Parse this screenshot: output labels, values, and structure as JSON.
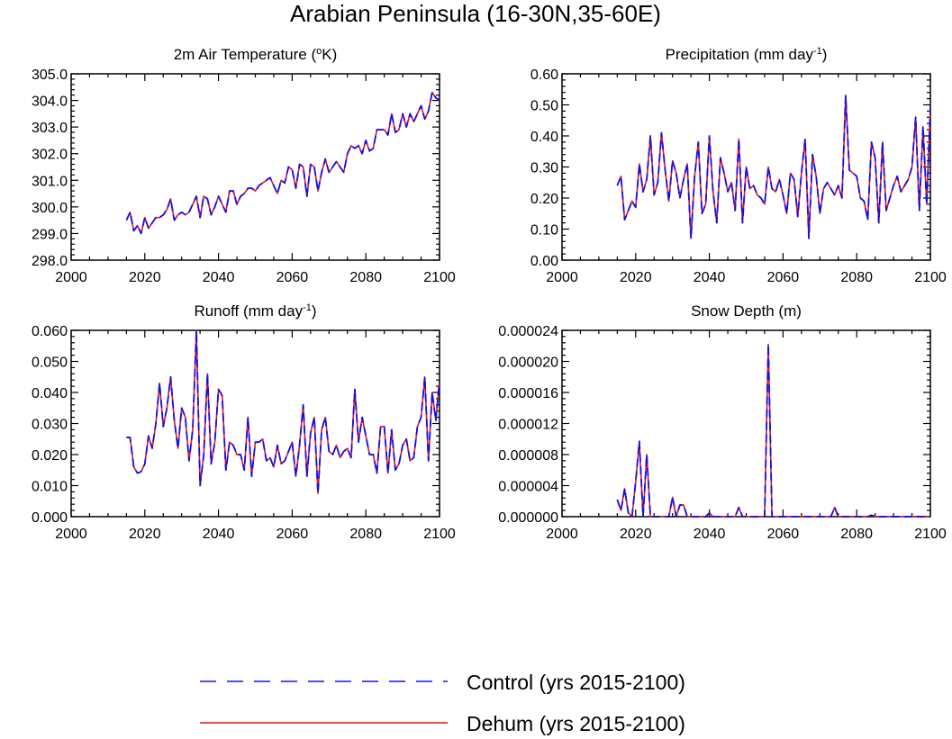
{
  "title": "Arabian Peninsula (16-30N,35-60E)",
  "legend": [
    {
      "label": "Control (yrs 2015-2100)",
      "color": "#1010ee",
      "style": "dashed"
    },
    {
      "label": "Dehum (yrs 2015-2100)",
      "color": "#ee1010",
      "style": "solid"
    }
  ],
  "chart_data": [
    {
      "type": "line",
      "title": "2m Air Temperature (",
      "title_sup": "o",
      "title_after": "K)",
      "xlim": [
        2000,
        2100
      ],
      "ylim": [
        298.0,
        305.0
      ],
      "xticks": [
        2000,
        2020,
        2040,
        2060,
        2080,
        2100
      ],
      "yticks": [
        298.0,
        299.0,
        300.0,
        301.0,
        302.0,
        303.0,
        304.0,
        305.0
      ],
      "ytick_labels": [
        "298.0",
        "299.0",
        "300.0",
        "301.0",
        "302.0",
        "303.0",
        "304.0",
        "305.0"
      ],
      "x_start": 2015,
      "series": [
        {
          "name": "Control",
          "values": [
            299.5,
            299.8,
            299.1,
            299.3,
            299.0,
            299.6,
            299.2,
            299.4,
            299.6,
            299.6,
            299.7,
            299.9,
            300.3,
            299.5,
            299.7,
            299.8,
            299.7,
            299.8,
            300.1,
            300.4,
            299.6,
            300.4,
            300.3,
            299.7,
            300.0,
            300.4,
            300.1,
            299.8,
            300.6,
            300.6,
            300.1,
            300.4,
            300.5,
            300.7,
            300.7,
            300.6,
            300.8,
            300.9,
            301.0,
            301.1,
            300.8,
            300.5,
            301.0,
            300.9,
            301.5,
            301.4,
            300.7,
            301.6,
            301.5,
            300.4,
            301.6,
            301.5,
            300.6,
            301.3,
            301.8,
            301.3,
            301.5,
            301.7,
            301.5,
            301.3,
            302.0,
            302.3,
            302.2,
            302.3,
            302.0,
            302.5,
            302.1,
            302.2,
            302.9,
            302.9,
            302.9,
            302.7,
            303.5,
            302.8,
            302.9,
            303.5,
            303.0,
            303.5,
            303.2,
            303.5,
            303.8,
            303.3,
            303.6,
            304.3,
            304.1,
            304.0
          ]
        },
        {
          "name": "Dehum",
          "values": [
            299.5,
            299.8,
            299.1,
            299.3,
            299.0,
            299.6,
            299.2,
            299.4,
            299.6,
            299.6,
            299.7,
            299.9,
            300.3,
            299.5,
            299.7,
            299.8,
            299.7,
            299.8,
            300.1,
            300.4,
            299.6,
            300.4,
            300.3,
            299.7,
            300.0,
            300.4,
            300.1,
            299.8,
            300.6,
            300.6,
            300.1,
            300.4,
            300.5,
            300.7,
            300.7,
            300.6,
            300.8,
            300.9,
            301.0,
            301.1,
            300.8,
            300.5,
            301.0,
            300.9,
            301.5,
            301.4,
            300.7,
            301.6,
            301.5,
            300.4,
            301.6,
            301.5,
            300.6,
            301.3,
            301.8,
            301.3,
            301.5,
            301.7,
            301.5,
            301.3,
            302.0,
            302.3,
            302.2,
            302.3,
            302.0,
            302.5,
            302.1,
            302.2,
            302.9,
            302.9,
            302.9,
            302.7,
            303.5,
            302.8,
            302.9,
            303.5,
            303.0,
            303.5,
            303.2,
            303.5,
            303.8,
            303.3,
            303.6,
            304.3,
            304.1,
            304.0
          ]
        }
      ]
    },
    {
      "type": "line",
      "title": "Precipitation (mm day",
      "title_sup": "-1",
      "title_after": ")",
      "xlim": [
        2000,
        2100
      ],
      "ylim": [
        0.0,
        0.6
      ],
      "xticks": [
        2000,
        2020,
        2040,
        2060,
        2080,
        2100
      ],
      "yticks": [
        0.0,
        0.1,
        0.2,
        0.3,
        0.4,
        0.5,
        0.6
      ],
      "ytick_labels": [
        "0.00",
        "0.10",
        "0.20",
        "0.30",
        "0.40",
        "0.50",
        "0.60"
      ],
      "x_start": 2015,
      "series": [
        {
          "name": "Control",
          "values": [
            0.24,
            0.27,
            0.13,
            0.16,
            0.19,
            0.17,
            0.31,
            0.22,
            0.26,
            0.4,
            0.21,
            0.25,
            0.41,
            0.29,
            0.19,
            0.32,
            0.28,
            0.2,
            0.26,
            0.31,
            0.07,
            0.27,
            0.38,
            0.15,
            0.18,
            0.4,
            0.22,
            0.12,
            0.33,
            0.28,
            0.22,
            0.25,
            0.16,
            0.39,
            0.12,
            0.3,
            0.23,
            0.24,
            0.21,
            0.2,
            0.18,
            0.3,
            0.23,
            0.22,
            0.26,
            0.21,
            0.15,
            0.28,
            0.26,
            0.14,
            0.28,
            0.39,
            0.07,
            0.34,
            0.27,
            0.15,
            0.23,
            0.25,
            0.23,
            0.21,
            0.24,
            0.2,
            0.53,
            0.29,
            0.28,
            0.27,
            0.2,
            0.19,
            0.13,
            0.38,
            0.33,
            0.12,
            0.38,
            0.16,
            0.2,
            0.24,
            0.27,
            0.22,
            0.24,
            0.26,
            0.3,
            0.46,
            0.16,
            0.43,
            0.18,
            0.49
          ]
        },
        {
          "name": "Dehum",
          "values": [
            0.24,
            0.27,
            0.13,
            0.16,
            0.19,
            0.17,
            0.31,
            0.22,
            0.26,
            0.4,
            0.21,
            0.25,
            0.41,
            0.29,
            0.19,
            0.32,
            0.28,
            0.2,
            0.26,
            0.31,
            0.07,
            0.27,
            0.38,
            0.15,
            0.18,
            0.4,
            0.22,
            0.12,
            0.33,
            0.28,
            0.22,
            0.25,
            0.16,
            0.39,
            0.12,
            0.3,
            0.23,
            0.24,
            0.21,
            0.2,
            0.18,
            0.3,
            0.23,
            0.22,
            0.26,
            0.21,
            0.15,
            0.28,
            0.26,
            0.14,
            0.28,
            0.39,
            0.07,
            0.34,
            0.27,
            0.15,
            0.23,
            0.25,
            0.23,
            0.21,
            0.24,
            0.2,
            0.53,
            0.29,
            0.28,
            0.27,
            0.2,
            0.19,
            0.13,
            0.38,
            0.33,
            0.12,
            0.38,
            0.16,
            0.2,
            0.24,
            0.27,
            0.22,
            0.24,
            0.26,
            0.3,
            0.46,
            0.16,
            0.43,
            0.18,
            0.49
          ]
        }
      ]
    },
    {
      "type": "line",
      "title": "Runoff (mm day",
      "title_sup": "-1",
      "title_after": ")",
      "xlim": [
        2000,
        2100
      ],
      "ylim": [
        0.0,
        0.06
      ],
      "xticks": [
        2000,
        2020,
        2040,
        2060,
        2080,
        2100
      ],
      "yticks": [
        0.0,
        0.01,
        0.02,
        0.03,
        0.04,
        0.05,
        0.06
      ],
      "ytick_labels": [
        "0.000",
        "0.010",
        "0.020",
        "0.030",
        "0.040",
        "0.050",
        "0.060"
      ],
      "x_start": 2015,
      "series": [
        {
          "name": "Control",
          "values": [
            0.0255,
            0.0255,
            0.016,
            0.014,
            0.0145,
            0.017,
            0.026,
            0.022,
            0.03,
            0.043,
            0.029,
            0.035,
            0.045,
            0.031,
            0.022,
            0.035,
            0.032,
            0.018,
            0.028,
            0.06,
            0.01,
            0.02,
            0.046,
            0.017,
            0.024,
            0.041,
            0.039,
            0.015,
            0.024,
            0.023,
            0.02,
            0.02,
            0.015,
            0.032,
            0.013,
            0.024,
            0.024,
            0.025,
            0.018,
            0.019,
            0.016,
            0.023,
            0.017,
            0.018,
            0.021,
            0.024,
            0.013,
            0.023,
            0.036,
            0.013,
            0.027,
            0.032,
            0.0075,
            0.028,
            0.032,
            0.021,
            0.02,
            0.023,
            0.019,
            0.021,
            0.022,
            0.019,
            0.041,
            0.024,
            0.032,
            0.026,
            0.02,
            0.02,
            0.014,
            0.029,
            0.029,
            0.014,
            0.028,
            0.015,
            0.017,
            0.023,
            0.025,
            0.018,
            0.019,
            0.029,
            0.032,
            0.045,
            0.018,
            0.04,
            0.031,
            0.044
          ]
        },
        {
          "name": "Dehum",
          "values": [
            0.0255,
            0.0255,
            0.016,
            0.014,
            0.0145,
            0.017,
            0.026,
            0.022,
            0.03,
            0.043,
            0.029,
            0.035,
            0.045,
            0.031,
            0.022,
            0.035,
            0.032,
            0.018,
            0.028,
            0.06,
            0.01,
            0.02,
            0.046,
            0.017,
            0.024,
            0.041,
            0.039,
            0.015,
            0.024,
            0.023,
            0.02,
            0.02,
            0.015,
            0.032,
            0.013,
            0.024,
            0.024,
            0.025,
            0.018,
            0.019,
            0.016,
            0.023,
            0.017,
            0.018,
            0.021,
            0.024,
            0.013,
            0.023,
            0.036,
            0.013,
            0.027,
            0.032,
            0.0075,
            0.028,
            0.032,
            0.021,
            0.02,
            0.023,
            0.019,
            0.021,
            0.022,
            0.019,
            0.041,
            0.024,
            0.032,
            0.026,
            0.02,
            0.02,
            0.014,
            0.029,
            0.029,
            0.014,
            0.028,
            0.015,
            0.017,
            0.023,
            0.025,
            0.018,
            0.019,
            0.029,
            0.032,
            0.045,
            0.018,
            0.04,
            0.031,
            0.044
          ]
        }
      ]
    },
    {
      "type": "line",
      "title": "Snow Depth (m)",
      "title_sup": "",
      "title_after": "",
      "xlim": [
        2000,
        2100
      ],
      "ylim": [
        0.0,
        2.4e-05
      ],
      "xticks": [
        2000,
        2020,
        2040,
        2060,
        2080,
        2100
      ],
      "yticks": [
        0.0,
        4e-06,
        8e-06,
        1.2e-05,
        1.6e-05,
        2e-05,
        2.4e-05
      ],
      "ytick_labels": [
        "0.000000",
        "0.000004",
        "0.000008",
        "0.000012",
        "0.000016",
        "0.000020",
        "0.000024"
      ],
      "x_start": 2015,
      "series": [
        {
          "name": "Control",
          "values": [
            2.2e-06,
            8e-07,
            3.6e-06,
            5e-07,
            0.0,
            4.5e-06,
            9.7e-06,
            0.0,
            8e-06,
            0.0,
            0.0,
            0.0,
            0.0,
            0.0,
            0.0,
            2.5e-06,
            0.0,
            1.5e-06,
            1.5e-06,
            0.0,
            0.0,
            0.0,
            0.0,
            0.0,
            0.0,
            5e-07,
            0.0,
            0.0,
            0.0,
            0.0,
            0.0,
            0.0,
            0.0,
            1.2e-06,
            0.0,
            0.0,
            0.0,
            0.0,
            0.0,
            0.0,
            0.0,
            2.22e-05,
            0.0,
            0.0,
            0.0,
            0.0,
            0.0,
            0.0,
            0.0,
            0.0,
            0.0,
            0.0,
            0.0,
            0.0,
            0.0,
            0.0,
            0.0,
            0.0,
            0.0,
            1.2e-06,
            0.0,
            0.0,
            0.0,
            0.0,
            0.0,
            0.0,
            0.0,
            0.0,
            0.0,
            2e-07,
            0.0,
            0.0,
            0.0,
            0.0,
            0.0,
            0.0,
            0.0,
            0.0,
            0.0,
            0.0,
            0.0,
            0.0,
            0.0,
            0.0,
            0.0,
            0.0
          ]
        },
        {
          "name": "Dehum",
          "values": [
            2.2e-06,
            8e-07,
            3.6e-06,
            5e-07,
            0.0,
            4.5e-06,
            9.7e-06,
            0.0,
            8e-06,
            0.0,
            0.0,
            0.0,
            0.0,
            0.0,
            0.0,
            2.5e-06,
            0.0,
            1.5e-06,
            1.5e-06,
            0.0,
            0.0,
            0.0,
            0.0,
            0.0,
            0.0,
            5e-07,
            0.0,
            0.0,
            0.0,
            0.0,
            0.0,
            0.0,
            0.0,
            1.2e-06,
            0.0,
            0.0,
            0.0,
            0.0,
            0.0,
            0.0,
            0.0,
            2.22e-05,
            0.0,
            0.0,
            0.0,
            0.0,
            0.0,
            0.0,
            0.0,
            0.0,
            0.0,
            0.0,
            0.0,
            0.0,
            0.0,
            0.0,
            0.0,
            0.0,
            0.0,
            1.2e-06,
            0.0,
            0.0,
            0.0,
            0.0,
            0.0,
            0.0,
            0.0,
            0.0,
            0.0,
            2e-07,
            0.0,
            0.0,
            0.0,
            0.0,
            0.0,
            0.0,
            0.0,
            0.0,
            0.0,
            0.0,
            0.0,
            0.0,
            0.0,
            0.0,
            0.0,
            0.0
          ]
        }
      ]
    }
  ]
}
